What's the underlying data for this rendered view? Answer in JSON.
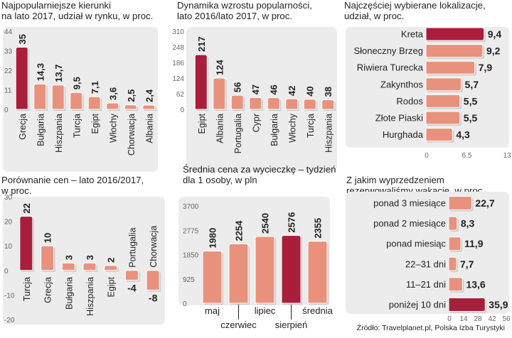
{
  "colors": {
    "panel": "#ececec",
    "accent": "#a81e3b",
    "bar": "#e8927e",
    "text": "#231f20",
    "axis": "#666666"
  },
  "source": "Źródło: Travelplanet.pl, Polska Izba Turystyki",
  "chart_data": [
    {
      "id": "kierunki",
      "type": "bar",
      "title": "Najpopularniejsze kierunki na lato 2017, udział w rynku, w proc.",
      "title_lines": [
        "Najpopularniejsze kierunki",
        "na lato 2017, udział w rynku, w proc."
      ],
      "categories": [
        "Grecja",
        "Bułgaria",
        "Hiszpania",
        "Turcja",
        "Egipt",
        "Włochy",
        "Chorwacja",
        "Albania"
      ],
      "values": [
        35,
        14.3,
        13.7,
        9.5,
        7.1,
        3.6,
        2.5,
        2.4
      ],
      "value_labels": [
        "35",
        "14,3",
        "13,7",
        "9,5",
        "7,1",
        "3,6",
        "2,5",
        "2,4"
      ],
      "highlight_index": 0,
      "ylim": [
        0,
        44
      ],
      "yticks": [
        0,
        11,
        22,
        33,
        44
      ]
    },
    {
      "id": "dynamika",
      "type": "bar",
      "title": "Dynamika wzrostu popularności, lato 2016/lato 2017, w proc.",
      "title_lines": [
        "Dynamika wzrostu popularności,",
        "lato 2016/lato 2017, w proc."
      ],
      "categories": [
        "Egipt",
        "Albania",
        "Portugalia",
        "Cypr",
        "Bułgaria",
        "Włochy",
        "Turcja",
        "Hiszpania"
      ],
      "values": [
        217,
        124,
        56,
        47,
        46,
        42,
        40,
        38
      ],
      "value_labels": [
        "217",
        "124",
        "56",
        "47",
        "46",
        "42",
        "40",
        "38"
      ],
      "highlight_index": 0,
      "ylim": [
        0,
        310
      ],
      "yticks": [
        0,
        62,
        124,
        186,
        248,
        310
      ]
    },
    {
      "id": "lokalizacje",
      "type": "bar",
      "orientation": "horizontal",
      "title": "Najczęściej wybierane lokalizacje, udział, w proc.",
      "title_lines": [
        "Najczęściej wybierane lokalizacje,",
        "udział, w proc."
      ],
      "categories": [
        "Kreta",
        "Słoneczny Brzeg",
        "Riwiera Turecka",
        "Zakynthos",
        "Rodos",
        "Złote Piaski",
        "Hurghada"
      ],
      "values": [
        9.4,
        9.2,
        7.9,
        5.7,
        5.5,
        5.5,
        4.3
      ],
      "value_labels": [
        "9,4",
        "9,2",
        "7,9",
        "5,7",
        "5,5",
        "5,5",
        "4,3"
      ],
      "highlight_index": 0,
      "xlim": [
        0,
        13
      ],
      "xticks": [
        0,
        6.5,
        13
      ],
      "xtick_labels": [
        "0",
        "6.5",
        "13"
      ]
    },
    {
      "id": "ceny",
      "type": "bar",
      "title": "Porównanie cen – lato 2016/2017, w proc.",
      "title_lines": [
        "Porównanie cen – lato 2016/2017,",
        "w proc."
      ],
      "categories": [
        "Turcja",
        "Grecja",
        "Bułgaria",
        "Hiszpania",
        "Egipt",
        "Portugalia",
        "Chorwacja"
      ],
      "values": [
        22,
        10,
        3,
        3,
        2,
        -4,
        -8
      ],
      "value_labels": [
        "22",
        "10",
        "3",
        "3",
        "2",
        "-4",
        "-8"
      ],
      "highlight_index": 0,
      "ylim": [
        -20,
        30
      ],
      "yticks": [
        -20,
        -10,
        0,
        10,
        20,
        30
      ]
    },
    {
      "id": "srednia",
      "type": "bar",
      "title": "Średnia cena za wycieczkę – tydzień dla 1 osoby, w pln",
      "title_lines": [
        "Średnia cena za wycieczkę – tydzień",
        "dla 1 osoby, w pln"
      ],
      "categories": [
        "maj",
        "czerwiec",
        "lipiec",
        "sierpień",
        "średnia"
      ],
      "values": [
        1980,
        2254,
        2540,
        2576,
        2355
      ],
      "value_labels": [
        "1980",
        "2254",
        "2540",
        "2576",
        "2355"
      ],
      "highlight_index": 3,
      "ylim": [
        0,
        3700
      ],
      "yticks": [
        0,
        925,
        1850,
        2775,
        3700
      ]
    },
    {
      "id": "wyprzedzenie",
      "type": "bar",
      "orientation": "horizontal",
      "title": "Z jakim wyprzedzeniem rezerwowaliśmy wakacje, w proc.",
      "title_lines": [
        "Z jakim wyprzedzeniem",
        "rezerwowaliśmy wakacje, w proc."
      ],
      "categories": [
        "ponad 3 miesiące",
        "ponad 2 miesiące",
        "ponad miesiąc",
        "22–31 dni",
        "11–21 dni",
        "poniżej 10 dni"
      ],
      "values": [
        22.7,
        8.3,
        11.9,
        7.7,
        13.6,
        35.9
      ],
      "value_labels": [
        "22,7",
        "8,3",
        "11,9",
        "7,7",
        "13,6",
        "35,9"
      ],
      "highlight_index": 5,
      "xlim": [
        0,
        56
      ],
      "xticks": [
        0,
        14,
        28,
        42,
        56
      ],
      "xtick_labels": [
        "0",
        "14",
        "28",
        "42",
        "56"
      ]
    }
  ]
}
